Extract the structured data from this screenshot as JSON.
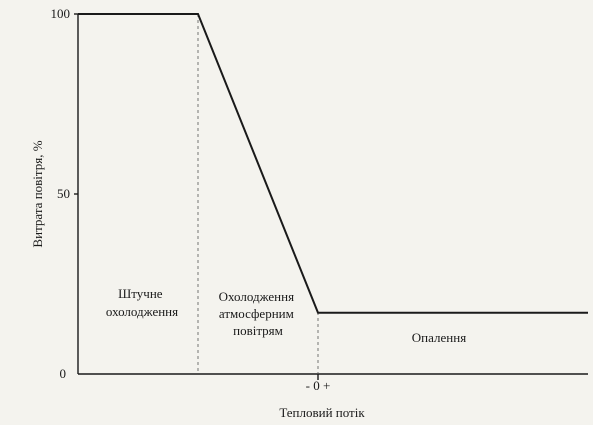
{
  "chart_data": {
    "type": "line",
    "xlabel": "Тепловий потік",
    "ylabel": "Витрата повітря, %",
    "ylim": [
      0,
      100
    ],
    "yticks": [
      0,
      50,
      100
    ],
    "xtick_label": "- 0 +",
    "series": [
      {
        "x": [
          "",
          "",
          "0",
          ""
        ],
        "y": [
          100,
          100,
          17,
          17
        ]
      }
    ],
    "regions": [
      {
        "lines": [
          "Штучне",
          "охолодження"
        ]
      },
      {
        "lines": [
          "Охолодження",
          "атмосферним",
          "повітрям"
        ]
      },
      {
        "lines": [
          "Опалення"
        ]
      }
    ],
    "grid": false,
    "legend": "none"
  }
}
